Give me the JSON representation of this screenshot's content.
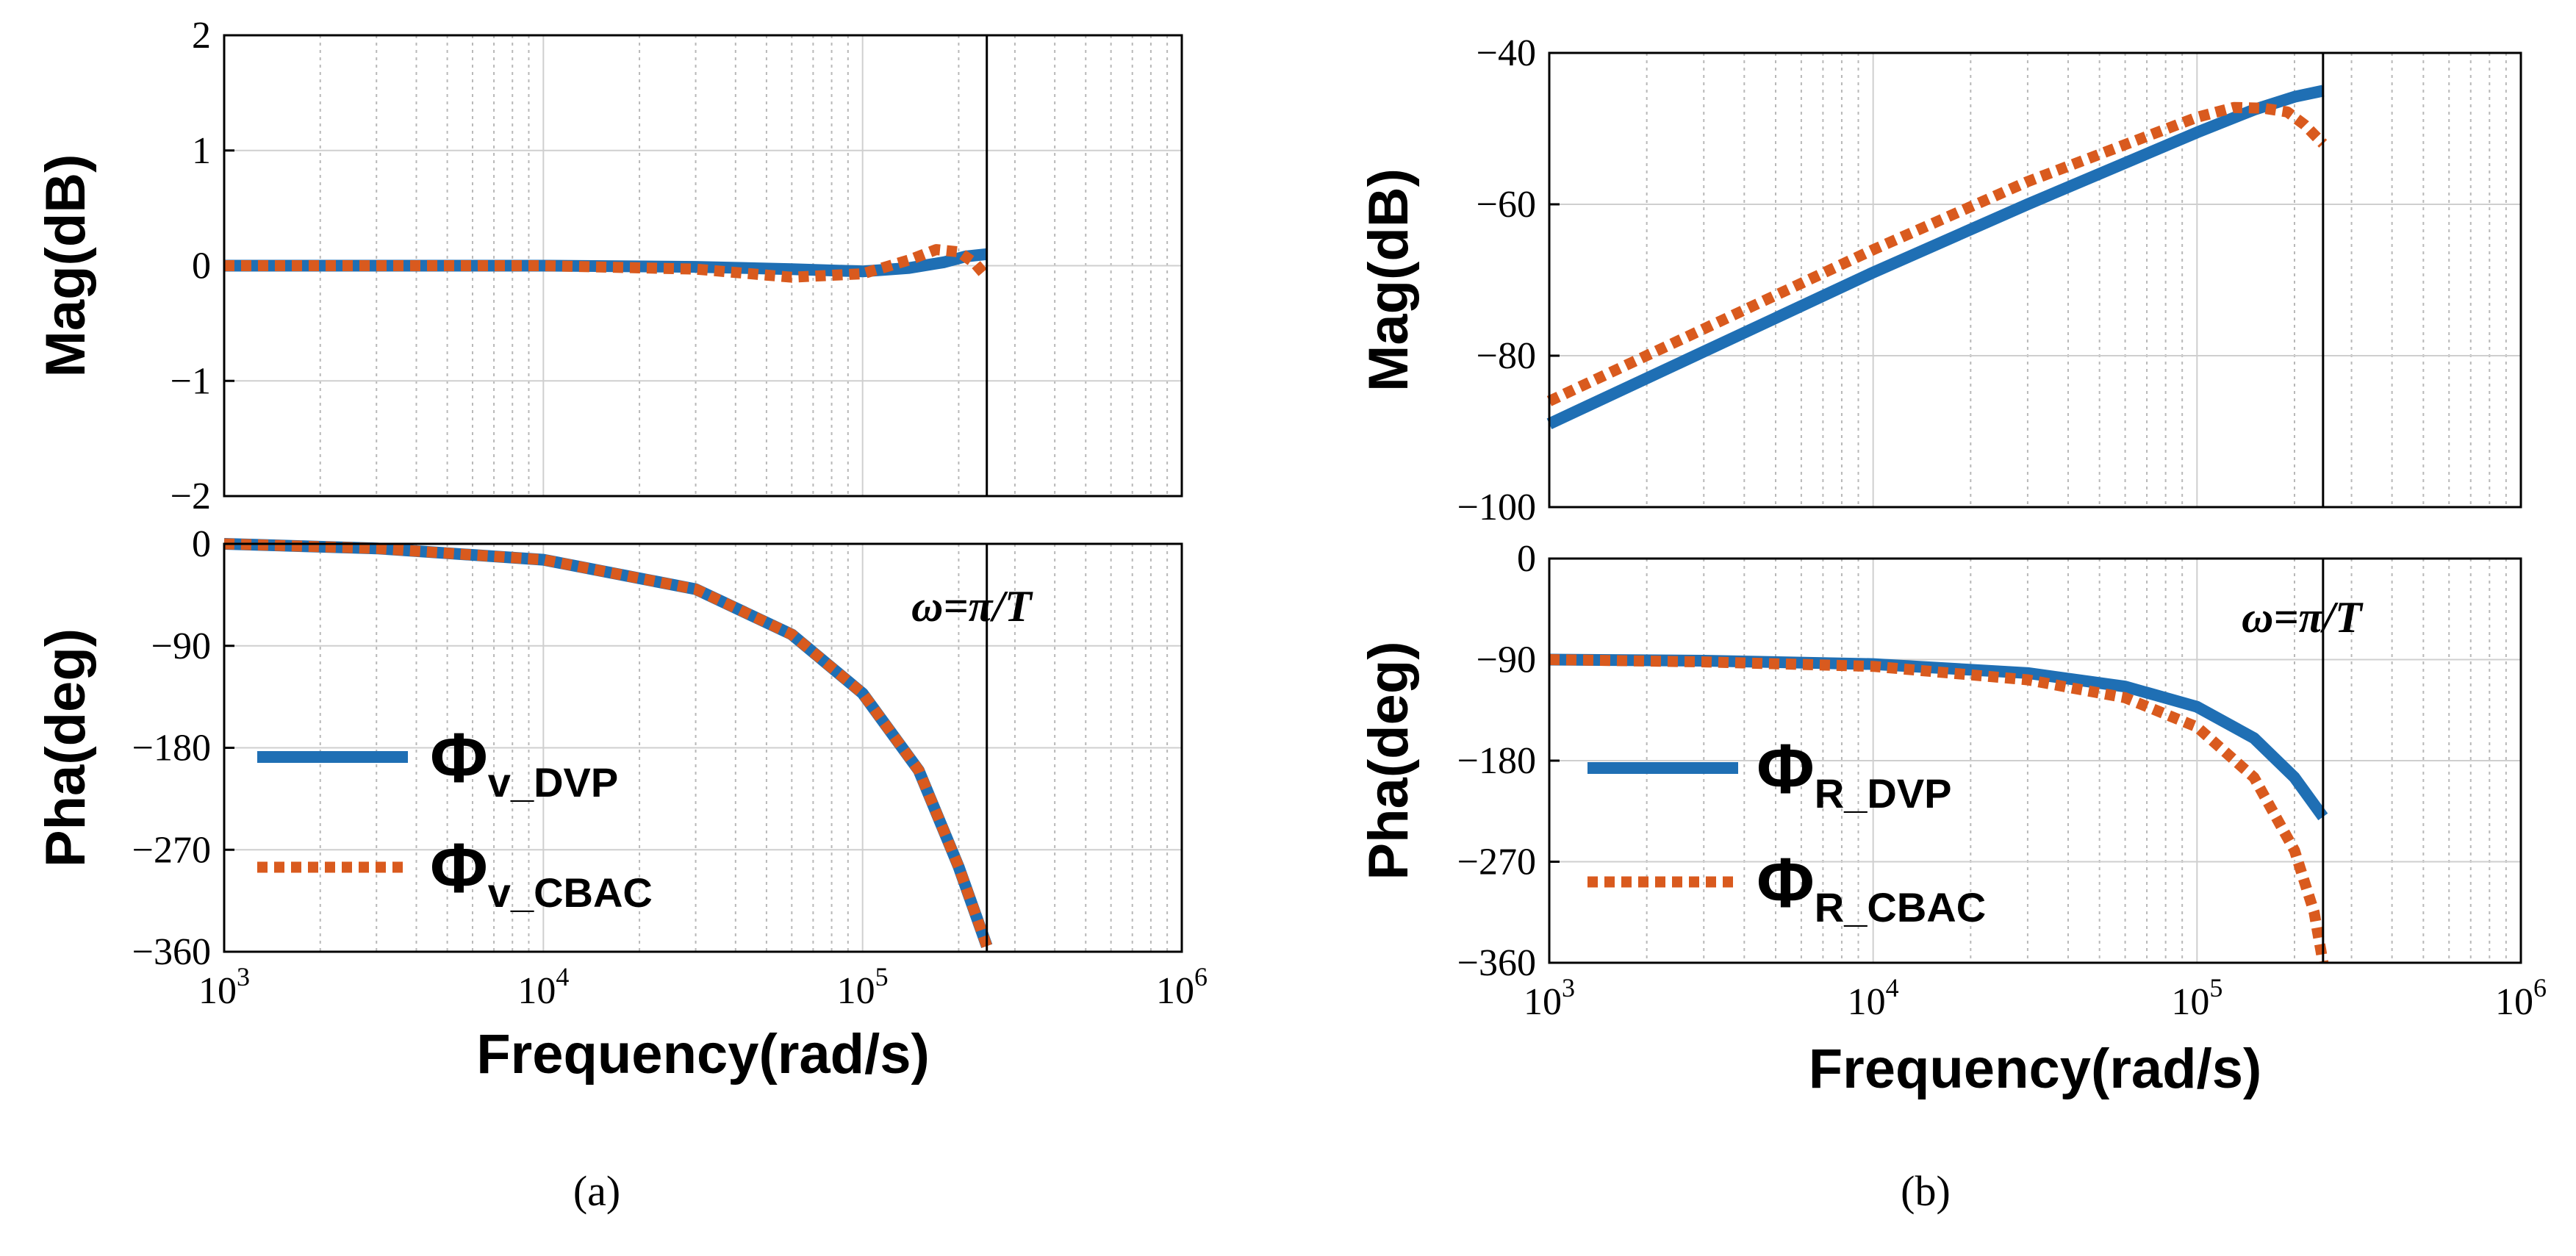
{
  "chart_data": [
    {
      "panel": "(a)",
      "caption": "(a)",
      "type": "line",
      "xscale": "log",
      "xlim": [
        1000,
        1000000
      ],
      "xlabel": "Frequency(rad/s)",
      "xticks": [
        {
          "mant": "10",
          "exp": "3"
        },
        {
          "mant": "10",
          "exp": "4"
        },
        {
          "mant": "10",
          "exp": "5"
        },
        {
          "mant": "10",
          "exp": "6"
        }
      ],
      "cutoff_x": 245000,
      "annotation": "ω=π/T",
      "mag": {
        "ylabel": "Mag(dB)",
        "ylim": [
          -2,
          2
        ],
        "yticks": [
          "2",
          "1",
          "0",
          "−1",
          "−2"
        ],
        "ytick_values": [
          2,
          1,
          0,
          -1,
          -2
        ],
        "series": [
          {
            "name": "Φv_DVP",
            "color": "#1f6fb4",
            "style": "solid",
            "x": [
              1000,
              5000,
              10000,
              30000,
              60000,
              100000,
              140000,
              180000,
              210000,
              245000
            ],
            "y": [
              0,
              0,
              0,
              -0.01,
              -0.03,
              -0.05,
              -0.02,
              0.03,
              0.08,
              0.1
            ]
          },
          {
            "name": "Φv_CBAC",
            "color": "#d95a1e",
            "style": "dotted",
            "x": [
              1000,
              10000,
              30000,
              60000,
              100000,
              140000,
              170000,
              200000,
              225000,
              245000
            ],
            "y": [
              0,
              0,
              -0.03,
              -0.1,
              -0.07,
              0.05,
              0.14,
              0.12,
              0.02,
              -0.1
            ]
          }
        ]
      },
      "pha": {
        "ylabel": "Pha(deg)",
        "ylim": [
          -360,
          0
        ],
        "yticks": [
          "0",
          "−90",
          "−180",
          "−270",
          "−360"
        ],
        "ytick_values": [
          0,
          -90,
          -180,
          -270,
          -360
        ],
        "series": [
          {
            "name": "Φv_DVP",
            "color": "#1f6fb4",
            "style": "solid",
            "x": [
              1000,
              3000,
              10000,
              30000,
              60000,
              100000,
              150000,
              200000,
              245000
            ],
            "y": [
              0,
              -4,
              -14,
              -40,
              -80,
              -132,
              -200,
              -285,
              -355
            ]
          },
          {
            "name": "Φv_CBAC",
            "color": "#d95a1e",
            "style": "dotted",
            "x": [
              1000,
              3000,
              10000,
              30000,
              60000,
              100000,
              150000,
              200000,
              245000
            ],
            "y": [
              0,
              -4,
              -14,
              -40,
              -80,
              -132,
              -200,
              -285,
              -355
            ]
          }
        ]
      },
      "legend": [
        {
          "symbol": "Φ",
          "sub": "v_DVP",
          "color": "#1f6fb4",
          "style": "solid"
        },
        {
          "symbol": "Φ",
          "sub": "v_CBAC",
          "color": "#d95a1e",
          "style": "dotted"
        }
      ]
    },
    {
      "panel": "(b)",
      "caption": "(b)",
      "type": "line",
      "xscale": "log",
      "xlim": [
        1000,
        1000000
      ],
      "xlabel": "Frequency(rad/s)",
      "xticks": [
        {
          "mant": "10",
          "exp": "3"
        },
        {
          "mant": "10",
          "exp": "4"
        },
        {
          "mant": "10",
          "exp": "5"
        },
        {
          "mant": "10",
          "exp": "6"
        }
      ],
      "cutoff_x": 245000,
      "annotation": "ω=π/T",
      "mag": {
        "ylabel": "Mag(dB)",
        "ylim": [
          -100,
          -40
        ],
        "yticks": [
          "−40",
          "−60",
          "−80",
          "−100"
        ],
        "ytick_values": [
          -40,
          -60,
          -80,
          -100
        ],
        "series": [
          {
            "name": "ΦR_DVP",
            "color": "#1f6fb4",
            "style": "solid",
            "x": [
              1000,
              10000,
              30000,
              100000,
              150000,
              200000,
              245000
            ],
            "y": [
              -89,
              -69,
              -60,
              -50.5,
              -47.5,
              -45.8,
              -45
            ]
          },
          {
            "name": "ΦR_CBAC",
            "color": "#d95a1e",
            "style": "dotted",
            "x": [
              1000,
              10000,
              30000,
              100000,
              130000,
              160000,
              190000,
              215000,
              245000
            ],
            "y": [
              -86,
              -66,
              -57,
              -48.5,
              -47.2,
              -47.3,
              -47.8,
              -49.5,
              -52
            ]
          }
        ]
      },
      "pha": {
        "ylabel": "Pha(deg)",
        "ylim": [
          -360,
          0
        ],
        "yticks": [
          "0",
          "−90",
          "−180",
          "−270",
          "−360"
        ],
        "ytick_values": [
          0,
          -90,
          -180,
          -270,
          -360
        ],
        "series": [
          {
            "name": "ΦR_DVP",
            "color": "#1f6fb4",
            "style": "solid",
            "x": [
              1000,
              3000,
              10000,
              30000,
              60000,
              100000,
              150000,
              200000,
              245000
            ],
            "y": [
              -90,
              -91,
              -94,
              -102,
              -114,
              -132,
              -160,
              -195,
              -230
            ]
          },
          {
            "name": "ΦR_CBAC",
            "color": "#d95a1e",
            "style": "dotted",
            "x": [
              1000,
              3000,
              10000,
              30000,
              60000,
              100000,
              150000,
              200000,
              230000,
              245000
            ],
            "y": [
              -90,
              -92,
              -96,
              -108,
              -124,
              -150,
              -195,
              -260,
              -315,
              -360
            ]
          }
        ]
      },
      "legend": [
        {
          "symbol": "Φ",
          "sub": "R_DVP",
          "color": "#1f6fb4",
          "style": "solid"
        },
        {
          "symbol": "Φ",
          "sub": "R_CBAC",
          "color": "#d95a1e",
          "style": "dotted"
        }
      ]
    }
  ]
}
